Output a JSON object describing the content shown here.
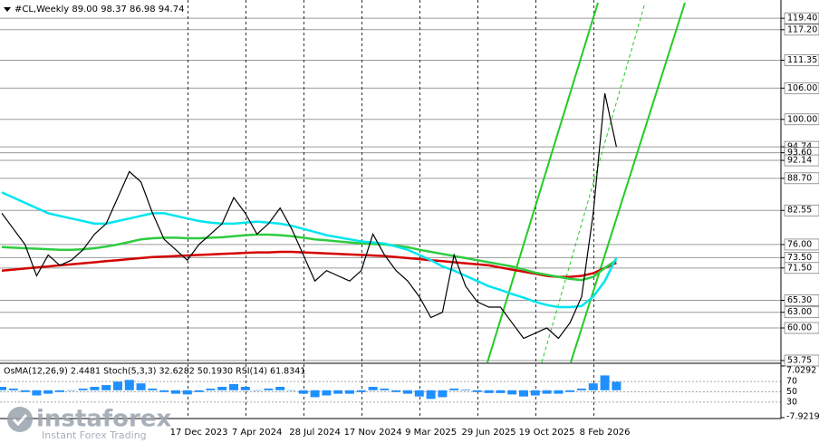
{
  "chart_data": {
    "type": "line",
    "title": "#CL,Weekly  89.00 98.37 86.98 94.74",
    "categories": [
      null,
      null,
      null,
      null,
      null,
      null,
      null,
      null,
      null,
      null,
      null,
      null,
      null,
      null,
      null,
      null,
      null,
      "17 Dec 2023",
      null,
      null,
      null,
      null,
      "7 Apr 2024",
      null,
      null,
      null,
      null,
      "28 Jul 2024",
      null,
      null,
      null,
      null,
      "17 Nov 2024",
      null,
      null,
      null,
      null,
      "9 Mar 2025",
      null,
      null,
      null,
      null,
      "29 Jun 2025",
      null,
      null,
      null,
      null,
      "19 Oct 2025",
      null,
      null,
      null,
      null,
      "8 Feb 2026",
      null
    ],
    "series": [
      {
        "color": "#000000",
        "values": [
          82,
          79,
          76,
          70,
          74,
          72,
          73,
          75,
          78,
          80,
          85,
          90,
          88,
          82,
          77,
          75,
          73,
          76,
          78,
          80,
          85,
          82,
          78,
          80,
          83,
          79,
          74,
          69,
          71,
          70,
          69,
          71,
          78,
          74,
          71,
          69,
          66,
          62,
          63,
          74,
          68,
          65,
          64,
          64,
          61,
          58,
          59,
          60,
          58,
          61,
          66,
          82,
          105,
          94.74
        ]
      },
      {
        "color": "#00e5ee",
        "values": [
          86,
          85,
          84,
          83,
          82,
          81.5,
          81,
          80.5,
          80,
          80,
          80.5,
          81,
          81.5,
          82,
          82,
          81.5,
          81,
          80.5,
          80.2,
          80,
          80,
          80.2,
          80.4,
          80.2,
          80,
          79.6,
          79,
          78.4,
          77.8,
          77.4,
          77,
          76.6,
          76.4,
          76.2,
          75.6,
          75,
          74,
          73,
          71.8,
          71,
          70,
          69,
          68,
          67.3,
          66.5,
          65.8,
          65,
          64.4,
          64,
          64,
          64.2,
          66,
          69,
          73.5
        ]
      },
      {
        "color": "#2ecc40",
        "values": [
          75.5,
          75.4,
          75.3,
          75.2,
          75.1,
          75,
          75,
          75.1,
          75.3,
          75.6,
          76,
          76.5,
          77,
          77.2,
          77.3,
          77.3,
          77.2,
          77.2,
          77.3,
          77.4,
          77.6,
          77.8,
          77.9,
          77.9,
          77.8,
          77.6,
          77.3,
          77,
          76.8,
          76.6,
          76.4,
          76.2,
          76.1,
          76,
          75.8,
          75.5,
          75,
          74.6,
          74.2,
          73.8,
          73.4,
          73,
          72.6,
          72.2,
          71.8,
          71.2,
          70.6,
          70.2,
          69.8,
          69.4,
          69.2,
          69.8,
          71.5,
          73
        ]
      },
      {
        "color": "#d40000",
        "values": [
          71,
          71.2,
          71.4,
          71.6,
          71.8,
          72,
          72.2,
          72.4,
          72.6,
          72.8,
          73,
          73.2,
          73.4,
          73.6,
          73.7,
          73.8,
          73.9,
          74,
          74.1,
          74.2,
          74.3,
          74.4,
          74.5,
          74.5,
          74.6,
          74.6,
          74.5,
          74.4,
          74.3,
          74.2,
          74.1,
          74,
          73.9,
          73.8,
          73.6,
          73.4,
          73.2,
          73,
          72.8,
          72.6,
          72.4,
          72.2,
          72,
          71.6,
          71.2,
          70.8,
          70.4,
          70,
          69.8,
          69.8,
          70,
          70.5,
          71.5,
          72.5
        ]
      }
    ],
    "ylim": [
      53.4,
      122.9
    ],
    "yticks": [
      {
        "value": 119.4,
        "label": "119.40"
      },
      {
        "value": 117.2,
        "label": "117.20"
      },
      {
        "value": 111.35,
        "label": "111.35"
      },
      {
        "value": 106,
        "label": "106.00"
      },
      {
        "value": 100,
        "label": "100.00"
      },
      {
        "value": 94.74,
        "label": "94.74"
      },
      {
        "value": 93.6,
        "label": "93.60"
      },
      {
        "value": 92.14,
        "label": "92.14"
      },
      {
        "value": 88.7,
        "label": "88.70"
      },
      {
        "value": 82.55,
        "label": "82.55"
      },
      {
        "value": 76,
        "label": "76.00"
      },
      {
        "value": 73.5,
        "label": "73.50"
      },
      {
        "value": 71.5,
        "label": "71.50"
      },
      {
        "value": 65.3,
        "label": "65.30"
      },
      {
        "value": 63,
        "label": "63.00"
      },
      {
        "value": 60,
        "label": "60.00"
      },
      {
        "value": 53.75,
        "label": "53.75"
      }
    ],
    "grid": true,
    "indicator": {
      "title": "OsMA(12,26,9) 2.4481  Stoch(5,3,3) 32.6282 50.1930  RSI(14) 61.8341",
      "osma": {
        "color": "#1e90ff",
        "values": [
          1,
          0.5,
          -0.5,
          -1.5,
          -1,
          -0.5,
          0,
          0.5,
          1,
          1.5,
          2.5,
          3,
          2,
          0.5,
          -0.5,
          -1,
          -1.2,
          -0.5,
          0.5,
          1,
          1.8,
          1,
          0,
          0.5,
          1,
          0,
          -1,
          -2,
          -1.5,
          -1,
          -1,
          -0.5,
          1,
          0.5,
          -0.5,
          -1,
          -1.8,
          -2.5,
          -2,
          0.5,
          0.2,
          -0.5,
          -0.8,
          -0.8,
          -1.2,
          -1.8,
          -1.5,
          -1,
          -1,
          -0.5,
          0.5,
          2,
          4.3,
          2.4481
        ]
      },
      "ylim": [
        -7.9219,
        7.0292
      ],
      "yticks": [
        {
          "value": 7.0292,
          "label": "7.0292"
        },
        {
          "value": -7.9219,
          "label": "-7.9219"
        }
      ],
      "rsi_ylim": [
        0,
        100
      ],
      "rsi_ticks": [
        70,
        50,
        30
      ]
    }
  },
  "watermark": {
    "brand": "instaforex",
    "tagline": "Instant Forex Trading"
  }
}
